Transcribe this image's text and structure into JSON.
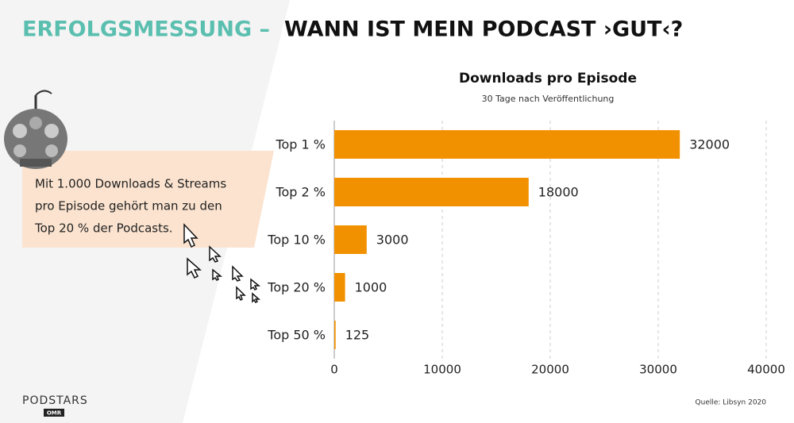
{
  "header": {
    "title_accent": "ERFOLGSMESSUNG –",
    "title_main": "WANN IST MEIN PODCAST ›GUT‹?"
  },
  "note": [
    "Mit 1.000 Downloads & Streams",
    "pro Episode gehört man zu den",
    "Top 20 % der Podcasts."
  ],
  "source": "Quelle: Libsyn 2020",
  "logo": {
    "name": "PODSTARS",
    "badge": "OMR"
  },
  "chart_data": {
    "type": "barh",
    "title": "Downloads pro Episode",
    "subtitle": "30 Tage nach Veröffentlichung",
    "categories": [
      "Top 1 %",
      "Top 2 %",
      "Top 10 %",
      "Top 20 %",
      "Top 50 %"
    ],
    "values": [
      32000,
      18000,
      3000,
      1000,
      125
    ],
    "color": "#f29100",
    "xlim": [
      0,
      40000
    ],
    "xticks": [
      0,
      10000,
      20000,
      30000,
      40000
    ],
    "grid": true
  }
}
